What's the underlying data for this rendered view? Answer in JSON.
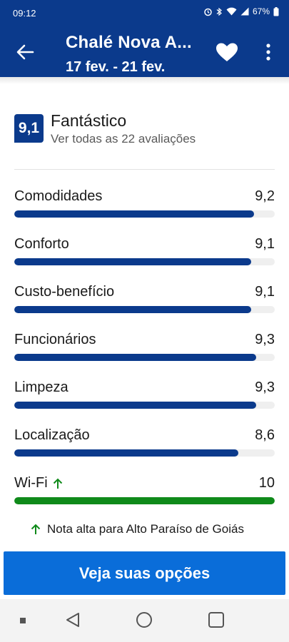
{
  "status_bar": {
    "time": "09:12",
    "battery": "67%"
  },
  "app_bar": {
    "title": "Chalé Nova A...",
    "dates": "17 fev. - 21 fev."
  },
  "score": {
    "value": "9,1",
    "label": "Fantástico",
    "reviews_link": "Ver todas as 22 avaliações"
  },
  "ratings": [
    {
      "label": "Comodidades",
      "value": "9,2",
      "fraction": 0.92
    },
    {
      "label": "Conforto",
      "value": "9,1",
      "fraction": 0.91
    },
    {
      "label": "Custo-benefício",
      "value": "9,1",
      "fraction": 0.91
    },
    {
      "label": "Funcionários",
      "value": "9,3",
      "fraction": 0.93
    },
    {
      "label": "Limpeza",
      "value": "9,3",
      "fraction": 0.93
    },
    {
      "label": "Localização",
      "value": "8,6",
      "fraction": 0.86
    },
    {
      "label": "Wi-Fi",
      "value": "10",
      "fraction": 1.0,
      "highlight": true
    }
  ],
  "note": "Nota alta para Alto Paraíso de Goiás",
  "cta_label": "Veja suas opções",
  "colors": {
    "brand_blue": "#0b3a8c",
    "cta_blue": "#0a6dd9",
    "highlight_green": "#0f8a1a"
  },
  "icons": [
    "back-arrow-icon",
    "heart-icon",
    "more-vert-icon",
    "arrow-up-icon",
    "nav-back-icon",
    "nav-home-icon",
    "nav-recents-icon"
  ]
}
